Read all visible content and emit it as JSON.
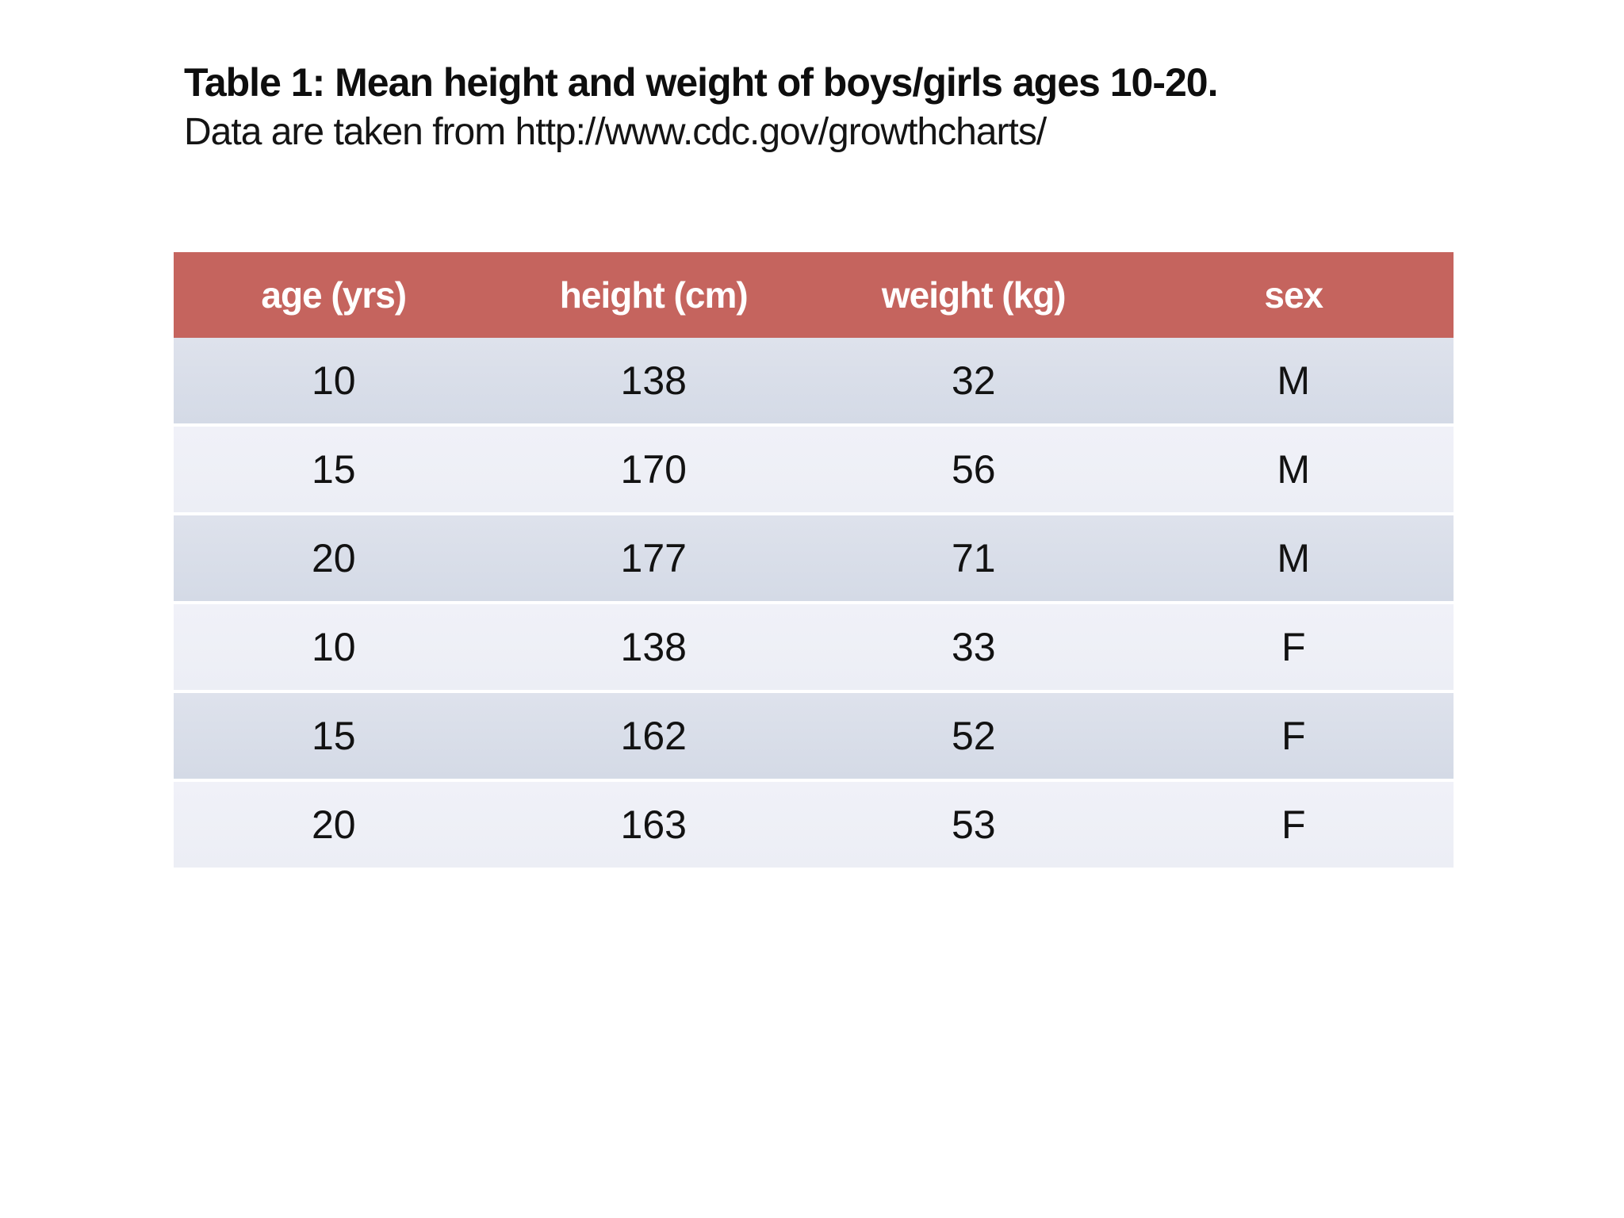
{
  "caption": {
    "title": "Table 1: Mean height and weight of boys/girls ages 10-20.",
    "source": "Data are taken from http://www.cdc.gov/growthcharts/"
  },
  "table": {
    "headers": [
      "age (yrs)",
      "height (cm)",
      "weight (kg)",
      "sex"
    ],
    "rows": [
      [
        "10",
        "138",
        "32",
        "M"
      ],
      [
        "15",
        "170",
        "56",
        "M"
      ],
      [
        "20",
        "177",
        "71",
        "M"
      ],
      [
        "10",
        "138",
        "33",
        "F"
      ],
      [
        "15",
        "162",
        "52",
        "F"
      ],
      [
        "20",
        "163",
        "53",
        "F"
      ]
    ]
  },
  "colors": {
    "header_bg": "#c5645e",
    "header_text": "#ffffff",
    "row_dark_top": "#dee2ec",
    "row_dark_bottom": "#d4dae6",
    "row_light": "#eef0f7",
    "separator": "#ffffff",
    "cell_text": "#121212",
    "page_bg": "#ffffff"
  },
  "chart_data": {
    "type": "table",
    "title": "Table 1: Mean height and weight of boys/girls ages 10-20.",
    "source_note": "Data are taken from http://www.cdc.gov/growthcharts/",
    "columns": [
      "age (yrs)",
      "height (cm)",
      "weight (kg)",
      "sex"
    ],
    "rows": [
      [
        10,
        138,
        32,
        "M"
      ],
      [
        15,
        170,
        56,
        "M"
      ],
      [
        20,
        177,
        71,
        "M"
      ],
      [
        10,
        138,
        33,
        "F"
      ],
      [
        15,
        162,
        52,
        "F"
      ],
      [
        20,
        163,
        53,
        "F"
      ]
    ]
  }
}
